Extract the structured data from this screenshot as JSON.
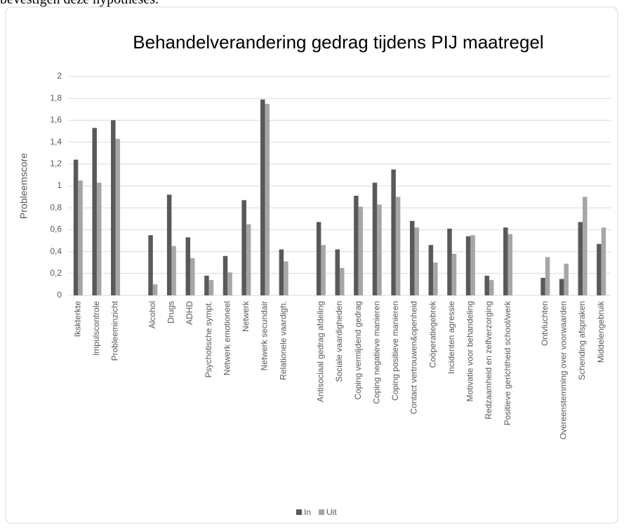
{
  "page_text": "bevestigen deze hypotheses.",
  "chart_data": {
    "type": "bar",
    "title": "Behandelverandering gedrag tijdens PIJ maatregel",
    "y_label": "Probleemscore",
    "categories": [
      "Ikskterkte",
      "Impulscontrole",
      "Probleeminzicht",
      null,
      "Alcohol",
      "Drugs",
      "ADHD",
      "Psychotische sympt.",
      "Netwerk emotioneel",
      "Netwerk",
      "Netwerk secundair",
      "Relationele vaardigh.",
      null,
      "Antisociaal gedrag afdeling",
      "Sociale vaardigheden",
      "Coping vermijdend gedrag",
      "Coping negatieve manieren",
      "Coping positieve manieren",
      "Contact vertrouwen&openheid",
      "Coöperatiegebrek",
      "Incidenten agressie",
      "Motivatie voor behandeling",
      "Redzaamheid en zelfverzorging",
      "Positieve gerichtheid school/werk",
      null,
      "Ontvluchten",
      "Overeenstemming over voorwaarden",
      "Schending afspraken",
      "Middelengebruik"
    ],
    "series": [
      {
        "name": "In",
        "color": "#595959",
        "values": [
          1.24,
          1.53,
          1.6,
          null,
          0.55,
          0.92,
          0.53,
          0.18,
          0.36,
          0.87,
          1.79,
          0.42,
          null,
          0.67,
          0.42,
          0.91,
          1.03,
          1.15,
          0.68,
          0.46,
          0.61,
          0.54,
          0.18,
          0.62,
          null,
          0.16,
          0.15,
          0.67,
          0.47
        ]
      },
      {
        "name": "Uit",
        "color": "#a6a6a6",
        "values": [
          1.05,
          1.03,
          1.43,
          null,
          0.1,
          0.45,
          0.34,
          0.14,
          0.21,
          0.65,
          1.75,
          0.31,
          null,
          0.46,
          0.25,
          0.81,
          0.83,
          0.9,
          0.62,
          0.3,
          0.38,
          0.55,
          0.14,
          0.56,
          null,
          0.35,
          0.29,
          0.9,
          0.62
        ]
      }
    ],
    "ylim": [
      0,
      2
    ],
    "yticks": [
      0,
      {
        "value": 0.2,
        "label": "0,2"
      },
      {
        "value": 0.4,
        "label": "0,4"
      },
      {
        "value": 0.6,
        "label": "0,6"
      },
      {
        "value": 0.8,
        "label": "0,8"
      },
      1,
      {
        "value": 1.2,
        "label": "1,2"
      },
      {
        "value": 1.4,
        "label": "1,4"
      },
      {
        "value": 1.6,
        "label": "1,6"
      },
      {
        "value": 1.8,
        "label": "1,8"
      },
      2
    ],
    "grid": true,
    "legend": "bottom"
  }
}
